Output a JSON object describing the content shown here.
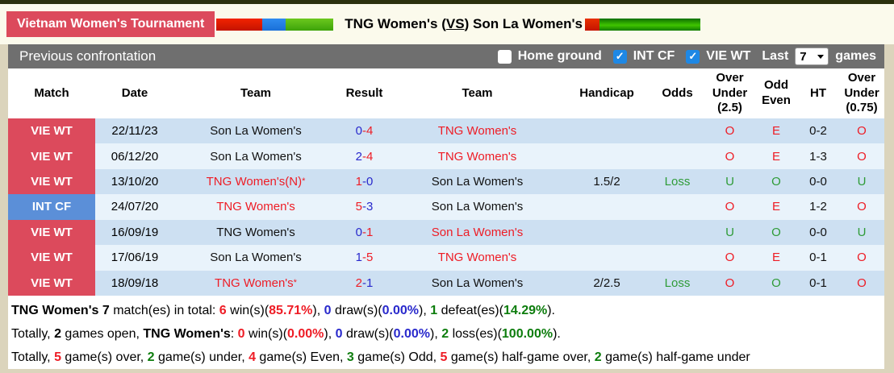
{
  "page": {
    "league": "Vietnam Women's Tournament",
    "title": {
      "home": "TNG Women's",
      "open": "(",
      "vs": "VS",
      "close": ")",
      "away": "Son La Women's"
    }
  },
  "icons": {
    "checked": "✓"
  },
  "toolbar": {
    "section_title": "Previous confrontation",
    "checkboxes": [
      {
        "label": "Home ground",
        "checked": false
      },
      {
        "label": "INT CF",
        "checked": true
      },
      {
        "label": "VIE WT",
        "checked": true
      }
    ],
    "last_label": "Last",
    "last_games_value": "7",
    "games_label": "games"
  },
  "table": {
    "headers": [
      "Match",
      "Date",
      "Team",
      "Result",
      "Team",
      "Handicap",
      "Odds",
      "Over Under (2.5)",
      "Odd Even",
      "HT",
      "Over Under (0.75)"
    ],
    "rows": [
      {
        "match": "VIE WT",
        "badge": "red",
        "date": "22/11/23",
        "team1": {
          "name": "Son La Women's",
          "color": "black",
          "sup": ""
        },
        "s1": "0",
        "c1": "blue",
        "s2": "4",
        "c2": "red",
        "team2": {
          "name": "TNG Women's",
          "color": "red",
          "sup": ""
        },
        "handicap": "",
        "odds": {
          "t": "",
          "c": "green"
        },
        "ou25": {
          "t": "O",
          "c": "red"
        },
        "oe": {
          "t": "E",
          "c": "red"
        },
        "ht": "0-2",
        "ou075": {
          "t": "O",
          "c": "red"
        }
      },
      {
        "match": "VIE WT",
        "badge": "red",
        "date": "06/12/20",
        "team1": {
          "name": "Son La Women's",
          "color": "black",
          "sup": ""
        },
        "s1": "2",
        "c1": "blue",
        "s2": "4",
        "c2": "red",
        "team2": {
          "name": "TNG Women's",
          "color": "red",
          "sup": ""
        },
        "handicap": "",
        "odds": {
          "t": "",
          "c": "green"
        },
        "ou25": {
          "t": "O",
          "c": "red"
        },
        "oe": {
          "t": "E",
          "c": "red"
        },
        "ht": "1-3",
        "ou075": {
          "t": "O",
          "c": "red"
        }
      },
      {
        "match": "VIE WT",
        "badge": "red",
        "date": "13/10/20",
        "team1": {
          "name": "TNG Women's(N)",
          "color": "red",
          "sup": "*"
        },
        "s1": "1",
        "c1": "red",
        "s2": "0",
        "c2": "blue",
        "team2": {
          "name": "Son La Women's",
          "color": "black",
          "sup": ""
        },
        "handicap": "1.5/2",
        "odds": {
          "t": "Loss",
          "c": "green"
        },
        "ou25": {
          "t": "U",
          "c": "green"
        },
        "oe": {
          "t": "O",
          "c": "green"
        },
        "ht": "0-0",
        "ou075": {
          "t": "U",
          "c": "green"
        }
      },
      {
        "match": "INT CF",
        "badge": "blue",
        "date": "24/07/20",
        "team1": {
          "name": "TNG Women's",
          "color": "red",
          "sup": ""
        },
        "s1": "5",
        "c1": "red",
        "s2": "3",
        "c2": "blue",
        "team2": {
          "name": "Son La Women's",
          "color": "black",
          "sup": ""
        },
        "handicap": "",
        "odds": {
          "t": "",
          "c": "green"
        },
        "ou25": {
          "t": "O",
          "c": "red"
        },
        "oe": {
          "t": "E",
          "c": "red"
        },
        "ht": "1-2",
        "ou075": {
          "t": "O",
          "c": "red"
        }
      },
      {
        "match": "VIE WT",
        "badge": "red",
        "date": "16/09/19",
        "team1": {
          "name": "TNG Women's",
          "color": "black",
          "sup": ""
        },
        "s1": "0",
        "c1": "blue",
        "s2": "1",
        "c2": "red",
        "team2": {
          "name": "Son La Women's",
          "color": "red",
          "sup": ""
        },
        "handicap": "",
        "odds": {
          "t": "",
          "c": "green"
        },
        "ou25": {
          "t": "U",
          "c": "green"
        },
        "oe": {
          "t": "O",
          "c": "green"
        },
        "ht": "0-0",
        "ou075": {
          "t": "U",
          "c": "green"
        }
      },
      {
        "match": "VIE WT",
        "badge": "red",
        "date": "17/06/19",
        "team1": {
          "name": "Son La Women's",
          "color": "black",
          "sup": ""
        },
        "s1": "1",
        "c1": "blue",
        "s2": "5",
        "c2": "red",
        "team2": {
          "name": "TNG Women's",
          "color": "red",
          "sup": ""
        },
        "handicap": "",
        "odds": {
          "t": "",
          "c": "green"
        },
        "ou25": {
          "t": "O",
          "c": "red"
        },
        "oe": {
          "t": "E",
          "c": "red"
        },
        "ht": "0-1",
        "ou075": {
          "t": "O",
          "c": "red"
        }
      },
      {
        "match": "VIE WT",
        "badge": "red",
        "date": "18/09/18",
        "team1": {
          "name": "TNG Women's",
          "color": "red",
          "sup": "*"
        },
        "s1": "2",
        "c1": "red",
        "s2": "1",
        "c2": "blue",
        "team2": {
          "name": "Son La Women's",
          "color": "black",
          "sup": ""
        },
        "handicap": "2/2.5",
        "odds": {
          "t": "Loss",
          "c": "green"
        },
        "ou25": {
          "t": "O",
          "c": "red"
        },
        "oe": {
          "t": "O",
          "c": "green"
        },
        "ht": "0-1",
        "ou075": {
          "t": "O",
          "c": "red"
        }
      }
    ]
  },
  "summary": {
    "lines": [
      [
        {
          "t": "TNG Women's 7",
          "s": "b"
        },
        {
          "t": " match(es) in total: ",
          "s": "n"
        },
        {
          "t": "6",
          "s": "r"
        },
        {
          "t": " win(s)(",
          "s": "n"
        },
        {
          "t": "85.71%",
          "s": "r"
        },
        {
          "t": "), ",
          "s": "n"
        },
        {
          "t": "0",
          "s": "u"
        },
        {
          "t": " draw(s)(",
          "s": "n"
        },
        {
          "t": "0.00%",
          "s": "u"
        },
        {
          "t": "), ",
          "s": "n"
        },
        {
          "t": "1",
          "s": "g"
        },
        {
          "t": " defeat(es)(",
          "s": "n"
        },
        {
          "t": "14.29%",
          "s": "g"
        },
        {
          "t": ").",
          "s": "n"
        }
      ],
      [
        {
          "t": "Totally, ",
          "s": "n"
        },
        {
          "t": "2",
          "s": "b"
        },
        {
          "t": " games open, ",
          "s": "n"
        },
        {
          "t": "TNG Women's",
          "s": "b"
        },
        {
          "t": ": ",
          "s": "n"
        },
        {
          "t": "0",
          "s": "r"
        },
        {
          "t": " win(s)(",
          "s": "n"
        },
        {
          "t": "0.00%",
          "s": "r"
        },
        {
          "t": "), ",
          "s": "n"
        },
        {
          "t": "0",
          "s": "u"
        },
        {
          "t": " draw(s)(",
          "s": "n"
        },
        {
          "t": "0.00%",
          "s": "u"
        },
        {
          "t": "), ",
          "s": "n"
        },
        {
          "t": "2",
          "s": "g"
        },
        {
          "t": " loss(es)(",
          "s": "n"
        },
        {
          "t": "100.00%",
          "s": "g"
        },
        {
          "t": ").",
          "s": "n"
        }
      ],
      [
        {
          "t": "Totally, ",
          "s": "n"
        },
        {
          "t": "5",
          "s": "r"
        },
        {
          "t": " game(s) over, ",
          "s": "n"
        },
        {
          "t": "2",
          "s": "g"
        },
        {
          "t": " game(s) under, ",
          "s": "n"
        },
        {
          "t": "4",
          "s": "r"
        },
        {
          "t": " game(s) Even, ",
          "s": "n"
        },
        {
          "t": "3",
          "s": "g"
        },
        {
          "t": " game(s) Odd, ",
          "s": "n"
        },
        {
          "t": "5",
          "s": "r"
        },
        {
          "t": " game(s) half-game over, ",
          "s": "n"
        },
        {
          "t": "2",
          "s": "g"
        },
        {
          "t": " game(s) half-game under",
          "s": "n"
        }
      ]
    ]
  },
  "colors": {
    "accent_red": "#DC4A5C",
    "badge_blue": "#5B8FD8",
    "row_dark": "#CDE0F2",
    "row_light": "#E9F3FB",
    "toolbar_gray": "#6F6F6F",
    "text_red": "#EE1C25",
    "text_blue": "#2929CC",
    "text_green": "#2E9B37",
    "summary_green": "#0D7D0D",
    "checkbox_blue": "#1E88E5"
  }
}
